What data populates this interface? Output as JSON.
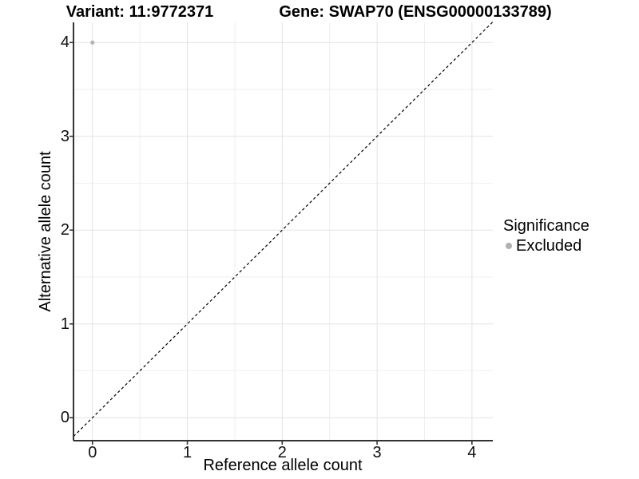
{
  "chart_data": {
    "type": "scatter",
    "title_left": "Variant: 11:9772371",
    "title_right": "Gene: SWAP70 (ENSG00000133789)",
    "xlabel": "Reference allele count",
    "ylabel": "Alternative allele count",
    "xlim": [
      -0.2,
      4.22
    ],
    "ylim": [
      -0.245,
      4.215
    ],
    "x_ticks": [
      0,
      1,
      2,
      3,
      4
    ],
    "y_ticks": [
      0,
      1,
      2,
      3,
      4
    ],
    "x_minor_ticks": [
      0.5,
      1.5,
      2.5,
      3.5
    ],
    "y_minor_ticks": [
      0.5,
      1.5,
      2.5,
      3.5
    ],
    "grid": "major and minor gridlines, light gray on white",
    "series": [
      {
        "name": "Excluded",
        "color": "#b5b5b5",
        "points": [
          {
            "x": 0,
            "y": 4
          }
        ]
      }
    ],
    "reference_line": {
      "type": "identity y=x",
      "style": "dashed",
      "color": "#000000"
    },
    "legend": {
      "title": "Significance",
      "position": "right",
      "entries": [
        {
          "label": "Excluded",
          "color": "#b0b0b0"
        }
      ]
    },
    "style": {
      "background": "#ffffff",
      "grid_major_color": "#e3e3e3",
      "grid_minor_color": "#efefef",
      "axis_line_color": "#333333",
      "tick_mark_color": "#333333",
      "point_radius": 2.6
    }
  }
}
